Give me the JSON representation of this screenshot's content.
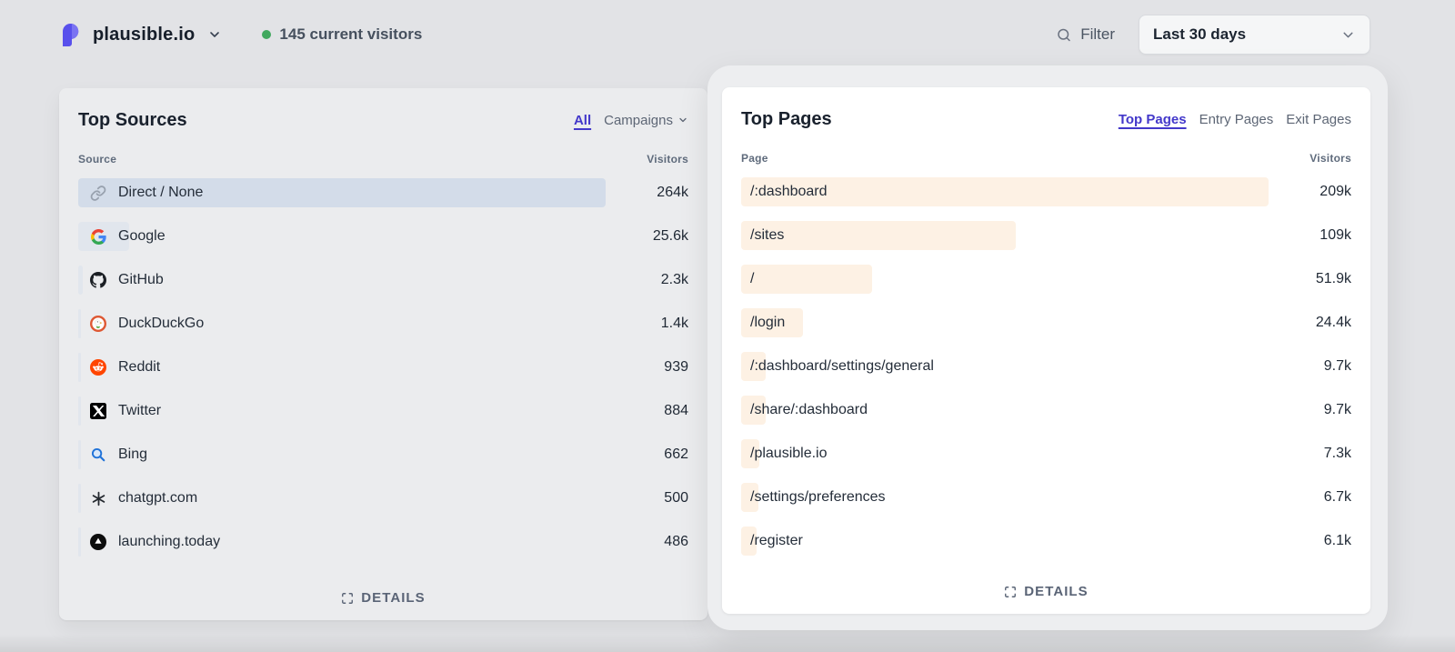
{
  "colors": {
    "accent": "#4338ca",
    "green_dot": "#41a85e",
    "sources_bar": "#e1e6ed",
    "sources_bar_highlight": "#d3dce9",
    "pages_bar": "#fdf1e4"
  },
  "header": {
    "site_name": "plausible.io",
    "current_visitors": "145 current visitors",
    "filter_label": "Filter",
    "date_range": "Last 30 days"
  },
  "top_sources": {
    "title": "Top Sources",
    "tabs": [
      {
        "label": "All",
        "active": true
      },
      {
        "label": "Campaigns",
        "active": false
      }
    ],
    "col_left": "Source",
    "col_right": "Visitors",
    "rows": [
      {
        "icon": "link-icon",
        "label": "Direct / None",
        "visitors": "264k",
        "highlighted": true
      },
      {
        "icon": "google-icon",
        "label": "Google",
        "visitors": "25.6k"
      },
      {
        "icon": "github-icon",
        "label": "GitHub",
        "visitors": "2.3k"
      },
      {
        "icon": "duckduckgo-icon",
        "label": "DuckDuckGo",
        "visitors": "1.4k"
      },
      {
        "icon": "reddit-icon",
        "label": "Reddit",
        "visitors": "939"
      },
      {
        "icon": "twitter-icon",
        "label": "Twitter",
        "visitors": "884"
      },
      {
        "icon": "bing-icon",
        "label": "Bing",
        "visitors": "662"
      },
      {
        "icon": "chatgpt-icon",
        "label": "chatgpt.com",
        "visitors": "500"
      },
      {
        "icon": "launching-today-icon",
        "label": "launching.today",
        "visitors": "486"
      }
    ],
    "details_label": "DETAILS"
  },
  "top_pages": {
    "title": "Top Pages",
    "tabs": [
      {
        "label": "Top Pages",
        "active": true
      },
      {
        "label": "Entry Pages",
        "active": false
      },
      {
        "label": "Exit Pages",
        "active": false
      }
    ],
    "col_left": "Page",
    "col_right": "Visitors",
    "rows": [
      {
        "label": "/:dashboard",
        "visitors": "209k"
      },
      {
        "label": "/sites",
        "visitors": "109k"
      },
      {
        "label": "/",
        "visitors": "51.9k"
      },
      {
        "label": "/login",
        "visitors": "24.4k"
      },
      {
        "label": "/:dashboard/settings/general",
        "visitors": "9.7k"
      },
      {
        "label": "/share/:dashboard",
        "visitors": "9.7k"
      },
      {
        "label": "/plausible.io",
        "visitors": "7.3k"
      },
      {
        "label": "/settings/preferences",
        "visitors": "6.7k"
      },
      {
        "label": "/register",
        "visitors": "6.1k"
      }
    ],
    "details_label": "DETAILS"
  }
}
